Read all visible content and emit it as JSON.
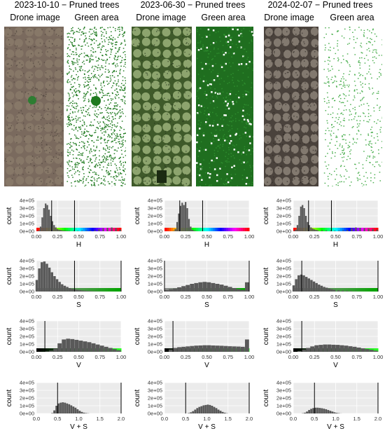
{
  "columns": [
    {
      "date_title": "2023-10-10 − Pruned trees",
      "drone_label": "Drone image",
      "green_label": "Green area"
    },
    {
      "date_title": "2023-06-30 − Pruned trees",
      "drone_label": "Drone image",
      "green_label": "Green area"
    },
    {
      "date_title": "2024-02-07 − Pruned trees",
      "drone_label": "Drone image",
      "green_label": "Green area"
    }
  ],
  "colors": {
    "panel_bg": "#ebebeb",
    "grid": "#ffffff",
    "bar": "#595959",
    "threshold_line": "#000000",
    "green_pixel": "#1f7a1f",
    "drone_olive": "#6b6a4a",
    "drone_green": "#4f6f3a",
    "drone_brown": "#7a6a5e"
  },
  "chart_data": [
    {
      "type": "bar",
      "column": 0,
      "variable": "H",
      "xlabel": "H",
      "ylabel": "count",
      "xlim": [
        0,
        1
      ],
      "ylim": [
        0,
        400000
      ],
      "yticks": [
        "4e+05",
        "3e+05",
        "2e+05",
        "1e+05",
        "0e+00"
      ],
      "xticks": [
        "0.00",
        "0.25",
        "0.50",
        "0.75",
        "1.00"
      ],
      "thresholds": [
        0.18,
        0.45
      ],
      "colorbar": "hue",
      "bins": [
        0.02,
        0.04,
        0.06,
        0.08,
        0.1,
        0.12,
        0.14,
        0.16,
        0.18,
        0.2,
        0.22,
        0.24,
        0.26,
        0.28,
        0.3,
        0.32,
        0.34,
        0.36,
        0.38,
        0.4,
        0.45,
        0.5,
        0.55,
        0.6,
        0.65,
        0.7,
        0.75,
        0.8,
        0.85,
        0.9,
        0.95,
        1.0
      ],
      "values": [
        2000,
        10000,
        60000,
        180000,
        300000,
        360000,
        340000,
        280000,
        200000,
        130000,
        80000,
        50000,
        30000,
        20000,
        15000,
        10000,
        8000,
        6000,
        5000,
        5000,
        5000,
        5000,
        5000,
        5000,
        8000,
        12000,
        25000,
        40000,
        45000,
        50000,
        40000,
        20000
      ]
    },
    {
      "type": "bar",
      "column": 0,
      "variable": "S",
      "xlabel": "S",
      "ylabel": "count",
      "xlim": [
        0,
        1
      ],
      "ylim": [
        0,
        400000
      ],
      "yticks": [
        "4e+05",
        "3e+05",
        "2e+05",
        "1e+05",
        "0e+00"
      ],
      "xticks": [
        "0.00",
        "0.25",
        "0.50",
        "0.75",
        "1.00"
      ],
      "thresholds": [
        0.45,
        1.0
      ],
      "colorbar": "saturation",
      "bins": [
        0.02,
        0.05,
        0.08,
        0.11,
        0.14,
        0.17,
        0.2,
        0.23,
        0.26,
        0.29,
        0.32,
        0.35,
        0.38,
        0.41,
        0.44,
        0.47,
        0.5,
        0.53,
        0.56,
        0.59,
        0.62,
        0.65,
        0.68,
        0.71,
        0.74,
        0.77,
        0.8
      ],
      "values": [
        150000,
        300000,
        380000,
        390000,
        360000,
        310000,
        250000,
        200000,
        160000,
        125000,
        95000,
        75000,
        60000,
        45000,
        35000,
        28000,
        22000,
        17000,
        13000,
        10000,
        8000,
        6000,
        4000,
        3000,
        2000,
        1000,
        500
      ]
    },
    {
      "type": "bar",
      "column": 0,
      "variable": "V",
      "xlabel": "V",
      "ylabel": "count",
      "xlim": [
        0,
        1
      ],
      "ylim": [
        0,
        400000
      ],
      "yticks": [
        "4e+05",
        "3e+05",
        "2e+05",
        "1e+05",
        "0e+00"
      ],
      "xticks": [
        "0.00",
        "0.25",
        "0.50",
        "0.75",
        "1.00"
      ],
      "thresholds": [
        0.1
      ],
      "colorbar": "value",
      "bins": [
        0.15,
        0.2,
        0.25,
        0.3,
        0.35,
        0.4,
        0.45,
        0.5,
        0.55,
        0.6,
        0.65,
        0.7,
        0.75,
        0.8,
        0.85,
        0.9,
        0.95,
        1.0
      ],
      "values": [
        5000,
        15000,
        40000,
        110000,
        160000,
        170000,
        165000,
        155000,
        145000,
        135000,
        125000,
        110000,
        95000,
        80000,
        65000,
        50000,
        35000,
        20000
      ]
    },
    {
      "type": "bar",
      "column": 0,
      "variable": "V + S",
      "xlabel": "V + S",
      "ylabel": "count",
      "xlim": [
        0,
        2
      ],
      "ylim": [
        0,
        400000
      ],
      "yticks": [
        "4e+05",
        "3e+05",
        "2e+05",
        "1e+05",
        "0e+00"
      ],
      "xticks": [
        "0.0",
        "0.5",
        "1.0",
        "1.5",
        "2.0"
      ],
      "thresholds": [
        0.5,
        2.0
      ],
      "colorbar": "none",
      "bins": [
        0.4,
        0.45,
        0.5,
        0.55,
        0.6,
        0.65,
        0.7,
        0.75,
        0.8,
        0.85,
        0.9,
        0.95,
        1.0,
        1.05,
        1.1,
        1.15,
        1.2,
        1.25
      ],
      "values": [
        5000,
        40000,
        100000,
        130000,
        140000,
        145000,
        140000,
        130000,
        120000,
        105000,
        90000,
        75000,
        55000,
        35000,
        20000,
        10000,
        5000,
        2000
      ]
    },
    {
      "type": "bar",
      "column": 1,
      "variable": "H",
      "xlabel": "H",
      "ylabel": "count",
      "xlim": [
        0,
        1
      ],
      "ylim": [
        0,
        400000
      ],
      "yticks": [
        "4e+05",
        "3e+05",
        "2e+05",
        "1e+05",
        "0e+00"
      ],
      "xticks": [
        "0.00",
        "0.25",
        "0.50",
        "0.75",
        "1.00"
      ],
      "thresholds": [
        0.18,
        0.45
      ],
      "colorbar": "hue",
      "bins": [
        0.12,
        0.14,
        0.16,
        0.18,
        0.2,
        0.22,
        0.24,
        0.26,
        0.28,
        0.3,
        0.32,
        0.34,
        0.36,
        0.38,
        0.4
      ],
      "values": [
        5000,
        30000,
        120000,
        230000,
        330000,
        370000,
        340000,
        380000,
        300000,
        160000,
        60000,
        20000,
        8000,
        3000,
        1000
      ]
    },
    {
      "type": "bar",
      "column": 1,
      "variable": "S",
      "xlabel": "S",
      "ylabel": "count",
      "xlim": [
        0,
        1
      ],
      "ylim": [
        0,
        400000
      ],
      "yticks": [
        "4e+05",
        "3e+05",
        "2e+05",
        "1e+05",
        "0e+00"
      ],
      "xticks": [
        "0.00",
        "0.25",
        "0.50",
        "0.75",
        "1.00"
      ],
      "thresholds": [
        0.0,
        1.0
      ],
      "colorbar": "saturation",
      "bins": [
        0.05,
        0.1,
        0.15,
        0.2,
        0.25,
        0.3,
        0.35,
        0.4,
        0.45,
        0.5,
        0.55,
        0.6,
        0.65,
        0.7,
        0.75,
        0.8,
        0.85,
        0.9,
        0.95,
        1.0
      ],
      "values": [
        20000,
        30000,
        40000,
        55000,
        70000,
        85000,
        100000,
        110000,
        120000,
        125000,
        120000,
        110000,
        100000,
        90000,
        75000,
        60000,
        45000,
        30000,
        20000,
        120000
      ]
    },
    {
      "type": "bar",
      "column": 1,
      "variable": "V",
      "xlabel": "V",
      "ylabel": "count",
      "xlim": [
        0,
        1
      ],
      "ylim": [
        0,
        400000
      ],
      "yticks": [
        "4e+05",
        "3e+05",
        "2e+05",
        "1e+05",
        "0e+00"
      ],
      "xticks": [
        "0.00",
        "0.25",
        "0.50",
        "0.75",
        "1.00"
      ],
      "thresholds": [
        0.1
      ],
      "colorbar": "value",
      "bins": [
        0.1,
        0.15,
        0.2,
        0.25,
        0.3,
        0.35,
        0.4,
        0.45,
        0.5,
        0.55,
        0.6,
        0.65,
        0.7,
        0.75,
        0.8,
        0.85,
        0.9,
        0.95,
        1.0
      ],
      "values": [
        30000,
        50000,
        60000,
        65000,
        70000,
        75000,
        80000,
        82000,
        85000,
        85000,
        82000,
        80000,
        78000,
        75000,
        72000,
        70000,
        68000,
        65000,
        160000
      ]
    },
    {
      "type": "bar",
      "column": 1,
      "variable": "V + S",
      "xlabel": "V + S",
      "ylabel": "count",
      "xlim": [
        0,
        2
      ],
      "ylim": [
        0,
        400000
      ],
      "yticks": [
        "4e+05",
        "3e+05",
        "2e+05",
        "1e+05",
        "0e+00"
      ],
      "xticks": [
        "0.0",
        "0.5",
        "1.0",
        "1.5",
        "2.0"
      ],
      "thresholds": [
        0.5,
        2.0
      ],
      "colorbar": "none",
      "bins": [
        0.6,
        0.65,
        0.7,
        0.75,
        0.8,
        0.85,
        0.9,
        0.95,
        1.0,
        1.05,
        1.1,
        1.15,
        1.2,
        1.25,
        1.3,
        1.35,
        1.4,
        1.45,
        1.5
      ],
      "values": [
        5000,
        15000,
        30000,
        50000,
        70000,
        85000,
        95000,
        105000,
        110000,
        115000,
        110000,
        100000,
        85000,
        70000,
        50000,
        35000,
        20000,
        10000,
        3000
      ]
    },
    {
      "type": "bar",
      "column": 2,
      "variable": "H",
      "xlabel": "H",
      "ylabel": "count",
      "xlim": [
        0,
        1
      ],
      "ylim": [
        0,
        400000
      ],
      "yticks": [
        "4e+05",
        "3e+05",
        "2e+05",
        "1e+05",
        "0e+00"
      ],
      "xticks": [
        "0.00",
        "0.25",
        "0.50",
        "0.75",
        "1.00"
      ],
      "thresholds": [
        0.18,
        0.45
      ],
      "colorbar": "hue",
      "bins": [
        0.02,
        0.04,
        0.06,
        0.08,
        0.1,
        0.12,
        0.14,
        0.16,
        0.18,
        0.2,
        0.22,
        0.24,
        0.26,
        0.28,
        0.3,
        0.35,
        0.4,
        0.45,
        0.5,
        0.55,
        0.6,
        0.65,
        0.7,
        0.75,
        0.8,
        0.85,
        0.9,
        0.95,
        1.0
      ],
      "values": [
        5000,
        20000,
        80000,
        200000,
        320000,
        340000,
        300000,
        200000,
        120000,
        80000,
        50000,
        35000,
        25000,
        18000,
        12000,
        10000,
        8000,
        7000,
        6000,
        6000,
        8000,
        15000,
        40000,
        50000,
        45000,
        40000,
        35000,
        30000,
        20000
      ]
    },
    {
      "type": "bar",
      "column": 2,
      "variable": "S",
      "xlabel": "S",
      "ylabel": "count",
      "xlim": [
        0,
        1
      ],
      "ylim": [
        0,
        400000
      ],
      "yticks": [
        "4e+05",
        "3e+05",
        "2e+05",
        "1e+05",
        "0e+00"
      ],
      "xticks": [
        "0.00",
        "0.25",
        "0.50",
        "0.75",
        "1.00"
      ],
      "thresholds": [
        0.1,
        1.0
      ],
      "colorbar": "saturation",
      "bins": [
        0.02,
        0.05,
        0.08,
        0.11,
        0.14,
        0.17,
        0.2,
        0.23,
        0.26,
        0.29,
        0.32,
        0.35,
        0.38,
        0.41,
        0.44,
        0.47,
        0.5,
        0.55,
        0.6,
        0.65,
        0.7,
        0.75,
        0.8
      ],
      "values": [
        80000,
        160000,
        210000,
        220000,
        210000,
        190000,
        170000,
        150000,
        130000,
        110000,
        90000,
        75000,
        60000,
        50000,
        40000,
        30000,
        22000,
        15000,
        10000,
        7000,
        5000,
        3000,
        1000
      ]
    },
    {
      "type": "bar",
      "column": 2,
      "variable": "V",
      "xlabel": "V",
      "ylabel": "count",
      "xlim": [
        0,
        1
      ],
      "ylim": [
        0,
        400000
      ],
      "yticks": [
        "4e+05",
        "3e+05",
        "2e+05",
        "1e+05",
        "0e+00"
      ],
      "xticks": [
        "0.00",
        "0.25",
        "0.50",
        "0.75",
        "1.00"
      ],
      "thresholds": [
        0.1
      ],
      "colorbar": "value",
      "bins": [
        0.1,
        0.15,
        0.2,
        0.25,
        0.3,
        0.35,
        0.4,
        0.45,
        0.5,
        0.55,
        0.6,
        0.65,
        0.7,
        0.75,
        0.8,
        0.85,
        0.9,
        0.95,
        1.0
      ],
      "values": [
        10000,
        30000,
        50000,
        70000,
        85000,
        90000,
        95000,
        95000,
        92000,
        90000,
        85000,
        80000,
        72000,
        65000,
        55000,
        45000,
        35000,
        25000,
        15000
      ]
    },
    {
      "type": "bar",
      "column": 2,
      "variable": "V + S",
      "xlabel": "V + S",
      "ylabel": "count",
      "xlim": [
        0,
        2
      ],
      "ylim": [
        0,
        400000
      ],
      "yticks": [
        "4e+05",
        "3e+05",
        "2e+05",
        "1e+05",
        "0e+00"
      ],
      "xticks": [
        "0.0",
        "0.5",
        "1.0",
        "1.5",
        "2.0"
      ],
      "thresholds": [
        0.5,
        2.0
      ],
      "colorbar": "none",
      "bins": [
        0.25,
        0.3,
        0.35,
        0.4,
        0.45,
        0.5,
        0.55,
        0.6,
        0.65,
        0.7,
        0.75,
        0.8,
        0.85,
        0.9,
        0.95,
        1.0,
        1.05,
        1.1,
        1.15
      ],
      "values": [
        3000,
        10000,
        25000,
        45000,
        60000,
        70000,
        75000,
        75000,
        72000,
        68000,
        62000,
        55000,
        45000,
        35000,
        25000,
        15000,
        8000,
        4000,
        1000
      ]
    }
  ]
}
